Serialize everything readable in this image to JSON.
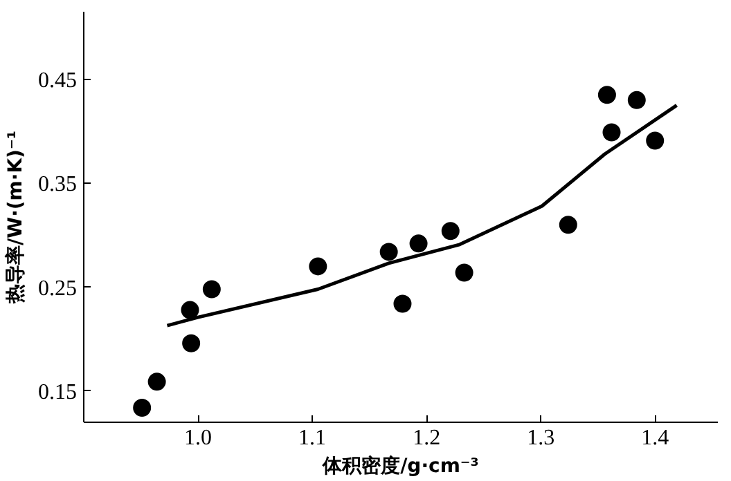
{
  "chart_data": {
    "type": "scatter",
    "xlabel": "体积密度/g·cm⁻³",
    "ylabel": "热导率/W·(m·K)⁻¹",
    "xlim": [
      0.9,
      1.455
    ],
    "ylim": [
      0.12,
      0.515
    ],
    "xticks": [
      {
        "value": 1.0,
        "label": "1.0"
      },
      {
        "value": 1.1,
        "label": "1.1"
      },
      {
        "value": 1.2,
        "label": "1.2"
      },
      {
        "value": 1.3,
        "label": "1.3"
      },
      {
        "value": 1.4,
        "label": "1.4"
      }
    ],
    "yticks": [
      0.15,
      0.25,
      0.35,
      0.45
    ],
    "grid": false,
    "series": [
      {
        "color": "#000000",
        "marker": "circle",
        "x": [
          0.951,
          0.964,
          0.993,
          0.994,
          1.012,
          1.105,
          1.167,
          1.179,
          1.193,
          1.221,
          1.233,
          1.324,
          1.358,
          1.362,
          1.384,
          1.4
        ],
        "values": [
          0.134,
          0.159,
          0.228,
          0.196,
          0.248,
          0.27,
          0.284,
          0.234,
          0.292,
          0.304,
          0.264,
          0.31,
          0.435,
          0.399,
          0.43,
          0.391
        ]
      },
      {
        "type": "line",
        "color": "#000000",
        "marker": "none",
        "line_style": "solid",
        "x": [
          0.973,
          1.0,
          1.105,
          1.167,
          1.229,
          1.301,
          1.356,
          1.419
        ],
        "values": [
          0.213,
          0.221,
          0.248,
          0.273,
          0.291,
          0.328,
          0.378,
          0.425
        ]
      }
    ]
  }
}
